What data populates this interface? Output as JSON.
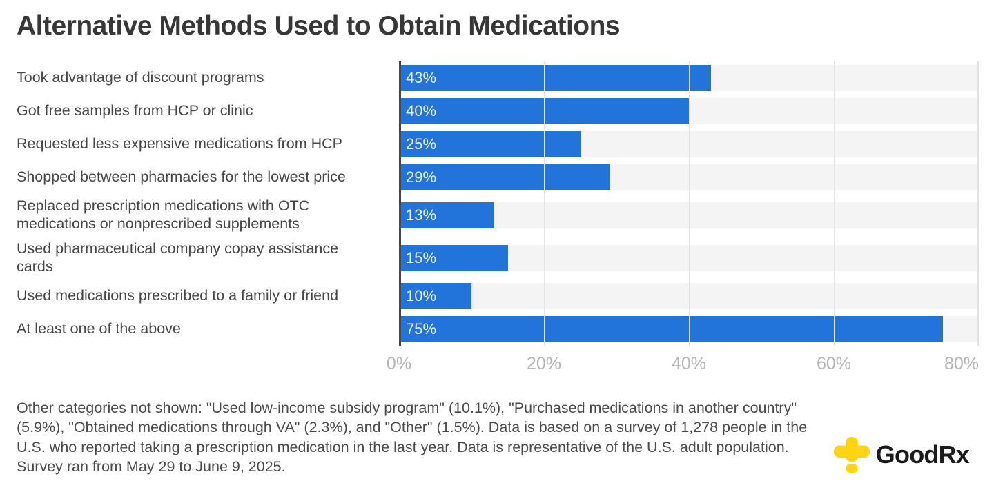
{
  "title": "Alternative Methods Used to Obtain Medications",
  "chart_data": {
    "type": "bar",
    "orientation": "horizontal",
    "title": "Alternative Methods Used to Obtain Medications",
    "categories": [
      "Took advantage of discount programs",
      "Got free samples from HCP or clinic",
      "Requested less expensive medications from HCP",
      "Shopped between pharmacies for the lowest price",
      "Replaced prescription medications with OTC medications or nonprescribed supplements",
      "Used pharmaceutical company copay assistance cards",
      "Used medications prescribed to a family or friend",
      "At least one of the above"
    ],
    "values": [
      43,
      40,
      25,
      29,
      13,
      15,
      10,
      75
    ],
    "value_labels": [
      "43%",
      "40%",
      "25%",
      "29%",
      "13%",
      "15%",
      "10%",
      "75%"
    ],
    "xlim": [
      0,
      80
    ],
    "x_ticks": [
      "0%",
      "20%",
      "40%",
      "60%",
      "80%"
    ],
    "grid": true,
    "legend": "none",
    "bar_color": "#2274db",
    "track_color": "#f4f4f4",
    "gridline_color": "#e3e3e3",
    "axis_line_color": "#474747",
    "tick_label_color": "#b5b5b5"
  },
  "footer": {
    "note": "Other categories not shown: \"Used low-income subsidy program\" (10.1%), \"Purchased medications in another country\" (5.9%), \"Obtained medications through VA\" (2.3%), and \"Other\" (1.5%). Data is based on a survey of 1,278 people in the U.S. who reported taking a prescription medication in the last year. Data is representative of the U.S. adult population. Survey ran from May 29 to June 9, 2025."
  },
  "logo": {
    "brand": "GoodRx",
    "cross_color": "#FFD412",
    "text_color": "#1c1b1c"
  }
}
